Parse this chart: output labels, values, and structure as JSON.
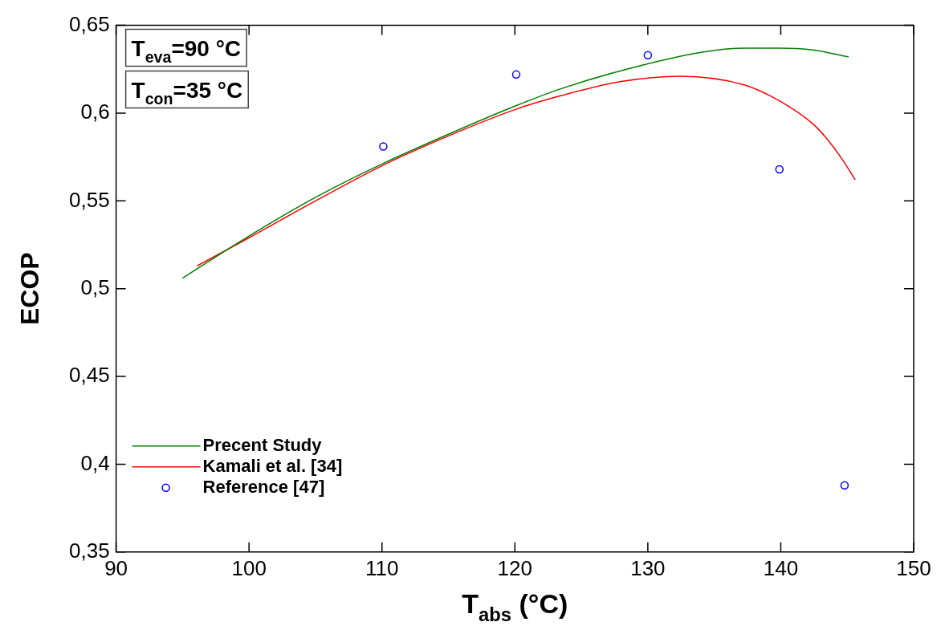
{
  "chart_data": {
    "type": "line",
    "xlabel": "T$_{abs}$ (°C)",
    "ylabel": "ECOP",
    "annotations": [
      "T$_{eva}$=90 °C",
      "T$_{con}$=35 °C"
    ],
    "xlim": [
      90,
      150
    ],
    "xticks": [
      90,
      100,
      110,
      120,
      130,
      140,
      150
    ],
    "ylim": [
      0.35,
      0.65
    ],
    "yticks": [
      {
        "value": 0.35,
        "label": "0,35"
      },
      {
        "value": 0.4,
        "label": "0,4"
      },
      {
        "value": 0.45,
        "label": "0,45"
      },
      {
        "value": 0.5,
        "label": "0,5"
      },
      {
        "value": 0.55,
        "label": "0,55"
      },
      {
        "value": 0.6,
        "label": "0,6"
      },
      {
        "value": 0.65,
        "label": "0,65"
      }
    ],
    "grid": false,
    "legend": "bottom left",
    "line_style": "solid",
    "series": [
      {
        "name": "Precent Study",
        "color": "#008000",
        "marker": "none",
        "x": [
          95,
          100,
          105,
          110,
          115,
          120,
          123.5,
          129.4,
          134.3,
          137.3,
          139.9,
          142.4,
          145.1
        ],
        "values": [
          0.506,
          0.53,
          0.552,
          0.571,
          0.588,
          0.604,
          0.614,
          0.627,
          0.635,
          0.637,
          0.637,
          0.636,
          0.632
        ]
      },
      {
        "name": "Kamali et al. [34]",
        "color": "#ff0000",
        "marker": "none",
        "x": [
          96.1,
          100,
          105,
          110,
          115,
          120,
          123.5,
          128,
          132.4,
          137.3,
          139.9,
          142.4,
          143.4,
          144.6,
          145.6
        ],
        "values": [
          0.513,
          0.529,
          0.55,
          0.57,
          0.587,
          0.602,
          0.61,
          0.618,
          0.621,
          0.616,
          0.607,
          0.594,
          0.586,
          0.574,
          0.562
        ]
      },
      {
        "name": "Reference [47]",
        "type": "scatter",
        "color": "#0000ff",
        "marker": "circle",
        "x": [
          110.1,
          120.1,
          130,
          139.9,
          144.8
        ],
        "values": [
          0.581,
          0.622,
          0.633,
          0.568,
          0.388
        ]
      }
    ]
  }
}
